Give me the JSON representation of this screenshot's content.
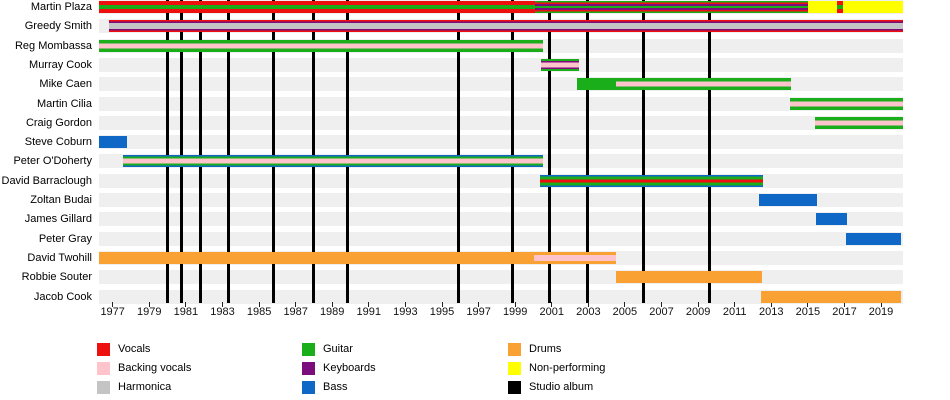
{
  "chart_data": {
    "type": "timeline",
    "title": "",
    "x_axis": {
      "min": 1976.25,
      "max": 2020.2,
      "tick_years": [
        1977,
        1979,
        1981,
        1983,
        1985,
        1987,
        1989,
        1991,
        1993,
        1995,
        1997,
        1999,
        2001,
        2003,
        2005,
        2007,
        2009,
        2011,
        2013,
        2015,
        2017,
        2019
      ]
    },
    "palette": {
      "red": "#ee0f0f",
      "pink": "#ffc3cc",
      "gray": "#c4c4c4",
      "green": "#1bae1b",
      "purple": "#7b0c7b",
      "blue": "#0f67c6",
      "orange": "#f9a233",
      "yellow": "#ffff00",
      "black": "#000000"
    },
    "row_band_color": "#efefef",
    "stripe_defs": {
      "red_green": [
        [
          "red",
          0,
          33
        ],
        [
          "green",
          33,
          67
        ],
        [
          "red",
          67,
          100
        ]
      ],
      "plaza_vkg": [
        [
          "green",
          0,
          11
        ],
        [
          "red",
          11,
          25
        ],
        [
          "purple",
          25,
          41
        ],
        [
          "green",
          41,
          59
        ],
        [
          "purple",
          59,
          75
        ],
        [
          "red",
          75,
          89
        ],
        [
          "green",
          89,
          100
        ]
      ],
      "greedy": [
        [
          "red",
          0,
          14
        ],
        [
          "purple",
          14,
          27
        ],
        [
          "gray",
          27,
          73
        ],
        [
          "purple",
          73,
          86
        ],
        [
          "red",
          86,
          100
        ]
      ],
      "green_pink": [
        [
          "green",
          0,
          30
        ],
        [
          "pink",
          30,
          70
        ],
        [
          "green",
          70,
          100
        ]
      ],
      "murray": [
        [
          "green",
          0,
          16
        ],
        [
          "purple",
          16,
          30
        ],
        [
          "pink",
          30,
          70
        ],
        [
          "purple",
          70,
          84
        ],
        [
          "green",
          84,
          100
        ]
      ],
      "odoherty": [
        [
          "blue",
          0,
          13
        ],
        [
          "green",
          13,
          31
        ],
        [
          "pink",
          31,
          69
        ],
        [
          "green",
          69,
          87
        ],
        [
          "blue",
          87,
          100
        ]
      ],
      "barraclough": [
        [
          "blue",
          0,
          14
        ],
        [
          "green",
          14,
          36
        ],
        [
          "red",
          36,
          64
        ],
        [
          "green",
          64,
          86
        ],
        [
          "blue",
          86,
          100
        ]
      ],
      "twohill_bv": [
        [
          "orange",
          0,
          26
        ],
        [
          "pink",
          26,
          74
        ],
        [
          "orange",
          74,
          100
        ]
      ],
      "green": [
        [
          "green",
          0,
          100
        ]
      ],
      "blue": [
        [
          "blue",
          0,
          100
        ]
      ],
      "orange": [
        [
          "orange",
          0,
          100
        ]
      ],
      "yellow": [
        [
          "yellow",
          0,
          100
        ]
      ]
    },
    "members": [
      {
        "name": "Martin Plaza",
        "segments": [
          {
            "start": 1976.25,
            "end": 2000.1,
            "roles": [
              "vocals",
              "guitar"
            ],
            "stripes": "red_green"
          },
          {
            "start": 2000.1,
            "end": 2015.0,
            "roles": [
              "vocals",
              "guitar",
              "keyboards"
            ],
            "stripes": "plaza_vkg"
          },
          {
            "start": 2015.0,
            "end": 2016.6,
            "roles": [
              "non-performing"
            ],
            "stripes": "yellow"
          },
          {
            "start": 2016.6,
            "end": 2016.9,
            "roles": [
              "vocals",
              "guitar"
            ],
            "stripes": "red_green"
          },
          {
            "start": 2016.9,
            "end": 2020.2,
            "roles": [
              "non-performing"
            ],
            "stripes": "yellow"
          }
        ]
      },
      {
        "name": "Greedy Smith",
        "segments": [
          {
            "start": 1976.8,
            "end": 2020.2,
            "roles": [
              "vocals",
              "keyboards",
              "harmonica"
            ],
            "stripes": "greedy"
          }
        ]
      },
      {
        "name": "Reg Mombassa",
        "segments": [
          {
            "start": 1976.25,
            "end": 2000.5,
            "roles": [
              "guitar",
              "backing vocals"
            ],
            "stripes": "green_pink"
          }
        ]
      },
      {
        "name": "Murray Cook",
        "segments": [
          {
            "start": 2000.4,
            "end": 2002.5,
            "roles": [
              "guitar",
              "keyboards",
              "backing vocals"
            ],
            "stripes": "murray"
          }
        ]
      },
      {
        "name": "Mike Caen",
        "segments": [
          {
            "start": 2002.4,
            "end": 2004.5,
            "roles": [
              "guitar"
            ],
            "stripes": "green"
          },
          {
            "start": 2004.5,
            "end": 2014.1,
            "roles": [
              "guitar",
              "backing vocals"
            ],
            "stripes": "green_pink"
          }
        ]
      },
      {
        "name": "Martin Cilia",
        "segments": [
          {
            "start": 2014.0,
            "end": 2020.2,
            "roles": [
              "guitar",
              "backing vocals"
            ],
            "stripes": "green_pink"
          }
        ]
      },
      {
        "name": "Craig Gordon",
        "segments": [
          {
            "start": 2015.4,
            "end": 2020.2,
            "roles": [
              "guitar",
              "backing vocals"
            ],
            "stripes": "green_pink"
          }
        ]
      },
      {
        "name": "Steve Coburn",
        "segments": [
          {
            "start": 1976.25,
            "end": 1977.8,
            "roles": [
              "bass"
            ],
            "stripes": "blue"
          }
        ]
      },
      {
        "name": "Peter O'Doherty",
        "segments": [
          {
            "start": 1977.55,
            "end": 2000.5,
            "roles": [
              "bass",
              "guitar",
              "backing vocals"
            ],
            "stripes": "odoherty"
          }
        ]
      },
      {
        "name": "David Barraclough",
        "segments": [
          {
            "start": 2000.35,
            "end": 2012.55,
            "roles": [
              "guitar",
              "bass",
              "vocals"
            ],
            "stripes": "barraclough"
          }
        ]
      },
      {
        "name": "Zoltan Budai",
        "segments": [
          {
            "start": 2012.35,
            "end": 2015.5,
            "roles": [
              "bass"
            ],
            "stripes": "blue"
          }
        ]
      },
      {
        "name": "James Gillard",
        "segments": [
          {
            "start": 2015.45,
            "end": 2017.15,
            "roles": [
              "bass"
            ],
            "stripes": "blue"
          }
        ]
      },
      {
        "name": "Peter Gray",
        "segments": [
          {
            "start": 2017.1,
            "end": 2020.1,
            "roles": [
              "bass"
            ],
            "stripes": "blue"
          }
        ]
      },
      {
        "name": "David Twohill",
        "segments": [
          {
            "start": 1976.25,
            "end": 2000.0,
            "roles": [
              "drums"
            ],
            "stripes": "orange"
          },
          {
            "start": 2000.0,
            "end": 2004.5,
            "roles": [
              "drums",
              "backing vocals"
            ],
            "stripes": "twohill_bv"
          }
        ]
      },
      {
        "name": "Robbie Souter",
        "segments": [
          {
            "start": 2004.5,
            "end": 2012.5,
            "roles": [
              "drums"
            ],
            "stripes": "orange"
          }
        ]
      },
      {
        "name": "Jacob Cook",
        "segments": [
          {
            "start": 2012.45,
            "end": 2020.1,
            "roles": [
              "drums"
            ],
            "stripes": "orange"
          }
        ]
      }
    ],
    "album_lines_years": [
      1979.97,
      1980.73,
      1981.77,
      1983.3,
      1985.76,
      1987.95,
      1989.81,
      1995.88,
      1998.83,
      2000.85,
      2002.93,
      2005.99,
      2009.6
    ]
  },
  "legend": {
    "columns": [
      {
        "items": [
          {
            "label": "Vocals",
            "color": "#ee0f0f"
          },
          {
            "label": "Backing vocals",
            "color": "#ffc3cc"
          },
          {
            "label": "Harmonica",
            "color": "#c4c4c4"
          }
        ]
      },
      {
        "items": [
          {
            "label": "Guitar",
            "color": "#1bae1b"
          },
          {
            "label": "Keyboards",
            "color": "#7b0c7b"
          },
          {
            "label": "Bass",
            "color": "#0f67c6"
          }
        ]
      },
      {
        "items": [
          {
            "label": "Drums",
            "color": "#f9a233"
          },
          {
            "label": "Non-performing",
            "color": "#ffff00"
          },
          {
            "label": "Studio album",
            "color": "#000000"
          }
        ]
      }
    ]
  }
}
